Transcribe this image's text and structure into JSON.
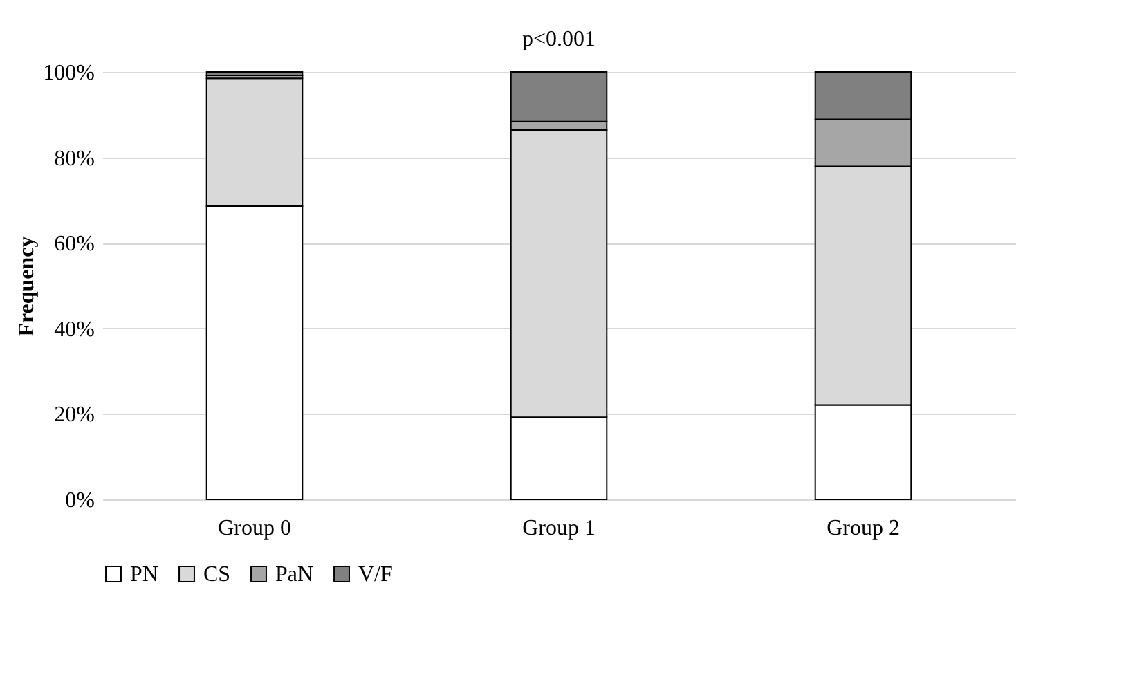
{
  "chart_data": {
    "type": "bar",
    "stacked": true,
    "title": "p<0.001",
    "ylabel": "Frequency",
    "categories": [
      "Group 0",
      "Group 1",
      "Group 2"
    ],
    "series": [
      {
        "name": "PN",
        "color": "#ffffff",
        "values": [
          68.6,
          19.2,
          22.1
        ]
      },
      {
        "name": "CS",
        "color": "#d9d9d9",
        "values": [
          29.9,
          67.2,
          55.8
        ]
      },
      {
        "name": "PaN",
        "color": "#a6a6a6",
        "values": [
          0.7,
          2.0,
          11.0
        ]
      },
      {
        "name": "V/F",
        "color": "#808080",
        "values": [
          0.8,
          11.6,
          11.1
        ]
      }
    ],
    "ylim": [
      0,
      100
    ],
    "yticks": [
      {
        "value": 0,
        "label": "0%"
      },
      {
        "value": 20,
        "label": "20%"
      },
      {
        "value": 40,
        "label": "40%"
      },
      {
        "value": 60,
        "label": "60%"
      },
      {
        "value": 80,
        "label": "80%"
      },
      {
        "value": 100,
        "label": "100%"
      }
    ],
    "grid": "y",
    "legend": "bottom"
  }
}
